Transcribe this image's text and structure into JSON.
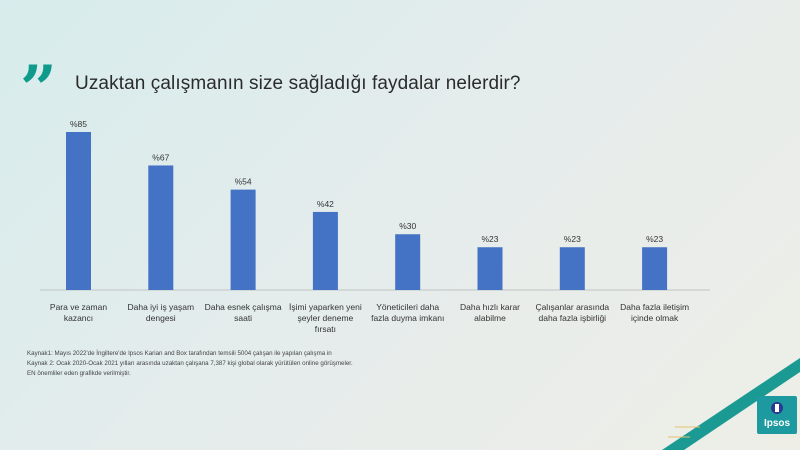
{
  "header": {
    "quote_symbol": "”",
    "title": "Uzaktan çalışmanın size sağladığı faydalar nelerdir?"
  },
  "chart_data": {
    "type": "bar",
    "title": "Uzaktan çalışmanın size sağladığı faydalar nelerdir?",
    "xlabel": "",
    "ylabel": "",
    "ylim": [
      0,
      85
    ],
    "grid": false,
    "value_prefix": "%",
    "categories": [
      [
        "Para ve zaman",
        "kazancı"
      ],
      [
        "Daha iyi iş yaşam",
        "dengesi"
      ],
      [
        "Daha esnek çalışma",
        "saati"
      ],
      [
        "İşimi yaparken yeni",
        "şeyler deneme",
        "fırsatı"
      ],
      [
        "Yöneticileri daha",
        "fazla duyma imkanı"
      ],
      [
        "Daha hızlı karar",
        "alabilme"
      ],
      [
        "Çalışanlar arasında",
        "daha fazla işbirliği"
      ],
      [
        "Daha fazla iletişim",
        "içinde olmak"
      ]
    ],
    "values": [
      85,
      67,
      54,
      42,
      30,
      23,
      23,
      23
    ],
    "value_labels": [
      "%85",
      "%67",
      "%54",
      "%42",
      "%30",
      "%23",
      "%23",
      "%23"
    ],
    "colors": {
      "bar": "#4472c4"
    }
  },
  "sources": [
    "Kaynak1: Mayıs 2022'de İngiltere'de Ipsos Karian and Box tarafından temsili 5004 çalışan ile yapılan çalışma in",
    "Kaynak 2: Ocak 2020-Ocak 2021 yılları arasında uzaktan çalışana 7,387 kişi global olarak yürütülen online görüşmeler.",
    "EN önemliler eden grafikde verilmiştir."
  ],
  "logo": {
    "text": "Ipsos"
  },
  "colors": {
    "accent": "#0e9b8c",
    "logo_bg": "#1d9aa0",
    "stripe": "#1a9a92"
  }
}
